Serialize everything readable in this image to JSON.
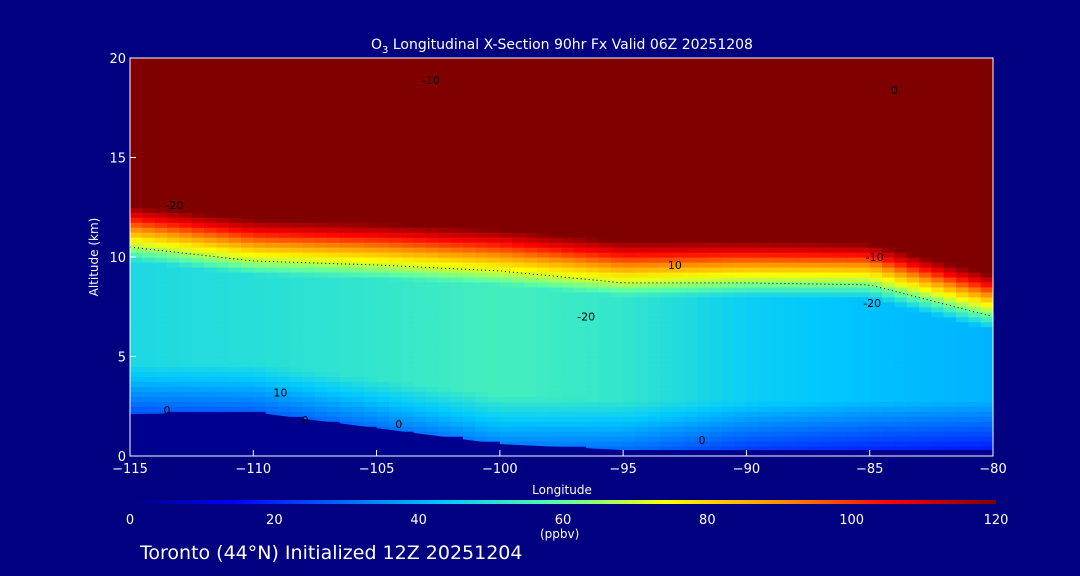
{
  "chart_data": {
    "type": "heatmap",
    "title": "O3 Longitudinal X-Section 90hr  Fx Valid 06Z 20251208",
    "title_parts": {
      "species": "O",
      "subscript": "3",
      "rest": " Longitudinal X-Section 90hr  Fx Valid 06Z 20251208"
    },
    "xlabel": "Longitude",
    "ylabel": "Altitude (km)",
    "xlim": [
      -115,
      -80
    ],
    "ylim": [
      0,
      20
    ],
    "x_ticks": [
      "-115",
      "-110",
      "-105",
      "-100",
      "-95",
      "-90",
      "-85",
      "-80"
    ],
    "y_ticks": [
      "0",
      "5",
      "10",
      "15",
      "20"
    ],
    "x": [
      -115,
      -110,
      -105,
      -100,
      -95,
      -90,
      -85,
      -80
    ],
    "tropopause_km": [
      11.3,
      10.6,
      10.4,
      10.1,
      9.5,
      9.5,
      9.4,
      7.8
    ],
    "mid_trop_o3_ppbv": [
      48,
      50,
      52,
      55,
      52,
      45,
      42,
      40
    ],
    "terrain_km": [
      2.1,
      2.2,
      1.4,
      0.6,
      0.3,
      0.3,
      0.3,
      0.3
    ],
    "contour_labels": [
      {
        "text": "-20",
        "lon": -113.2,
        "alt": 12.4
      },
      {
        "text": "-10",
        "lon": -102.8,
        "alt": 18.7
      },
      {
        "text": "10",
        "lon": -108.9,
        "alt": 3.0
      },
      {
        "text": "0",
        "lon": -113.5,
        "alt": 2.1
      },
      {
        "text": "0",
        "lon": -107.9,
        "alt": 1.6
      },
      {
        "text": "0",
        "lon": -104.1,
        "alt": 1.4
      },
      {
        "text": "-20",
        "lon": -96.5,
        "alt": 6.8
      },
      {
        "text": "10",
        "lon": -92.9,
        "alt": 9.4
      },
      {
        "text": "-10",
        "lon": -84.8,
        "alt": 9.8
      },
      {
        "text": "-20",
        "lon": -84.9,
        "alt": 7.5
      },
      {
        "text": "0",
        "lon": -84.0,
        "alt": 18.2
      },
      {
        "text": "0",
        "lon": -91.8,
        "alt": 0.6
      }
    ],
    "colorbar": {
      "ticks": [
        "0",
        "20",
        "40",
        "60",
        "80",
        "100",
        "120"
      ],
      "unit": "(ppbv)",
      "range": [
        0,
        120
      ]
    },
    "colors": {
      "background": "#000080",
      "high": "#800000",
      "terrain": "#00008f"
    }
  },
  "footer": "Toronto (44°N) Initialized 12Z 20251204"
}
